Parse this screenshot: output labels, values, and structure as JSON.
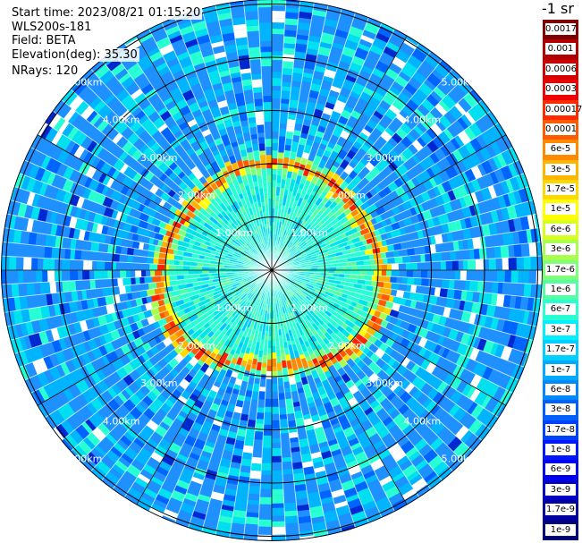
{
  "info": {
    "start_time": "Start time: 2023/08/21 01:15:20",
    "instrument": "WLS200s-181",
    "field": "Field: BETA",
    "elevation": "Elevation(deg): 35.30",
    "nrays": "NRays: 120"
  },
  "colorbar": {
    "unit": "-1 sr",
    "labels": [
      "0.0017",
      "0.001",
      "0.0006",
      "0.0003",
      "0.00017",
      "0.0001",
      "6e-5",
      "3e-5",
      "1.7e-5",
      "1e-5",
      "6e-6",
      "3e-6",
      "1.7e-6",
      "1e-6",
      "6e-7",
      "3e-7",
      "1.7e-7",
      "1e-7",
      "6e-8",
      "3e-8",
      "1.7e-8",
      "1e-8",
      "6e-9",
      "3e-9",
      "1.7e-9",
      "1e-9"
    ],
    "colors": [
      "#7f0000",
      "#b00000",
      "#d40000",
      "#f00000",
      "#ff2a00",
      "#ff5a00",
      "#ff8a00",
      "#ffb400",
      "#ffd800",
      "#ffff00",
      "#d8ff20",
      "#a8ff50",
      "#80ff78",
      "#54ffa4",
      "#28ffd2",
      "#00f0ff",
      "#00d0ff",
      "#00aaff",
      "#0088ff",
      "#0060ff",
      "#0040ff",
      "#0018ff",
      "#0000f0",
      "#0000c8",
      "#0000a0",
      "#000078"
    ]
  },
  "chart_data": {
    "type": "heatmap",
    "projection": "polar PPI",
    "field": "BETA",
    "units": "-1 sr",
    "nrays": 120,
    "range_rings_km": [
      1,
      2,
      3,
      4,
      5
    ],
    "ring_labels": [
      "1.00km",
      "2.00km",
      "3.00km",
      "4.00km",
      "5.00km"
    ],
    "max_range_km": 6,
    "spokes_deg": [
      0,
      30,
      60,
      90,
      120,
      150,
      180,
      210,
      240,
      270,
      300,
      330
    ],
    "boundary_layer_ring_km": 2.0
  }
}
